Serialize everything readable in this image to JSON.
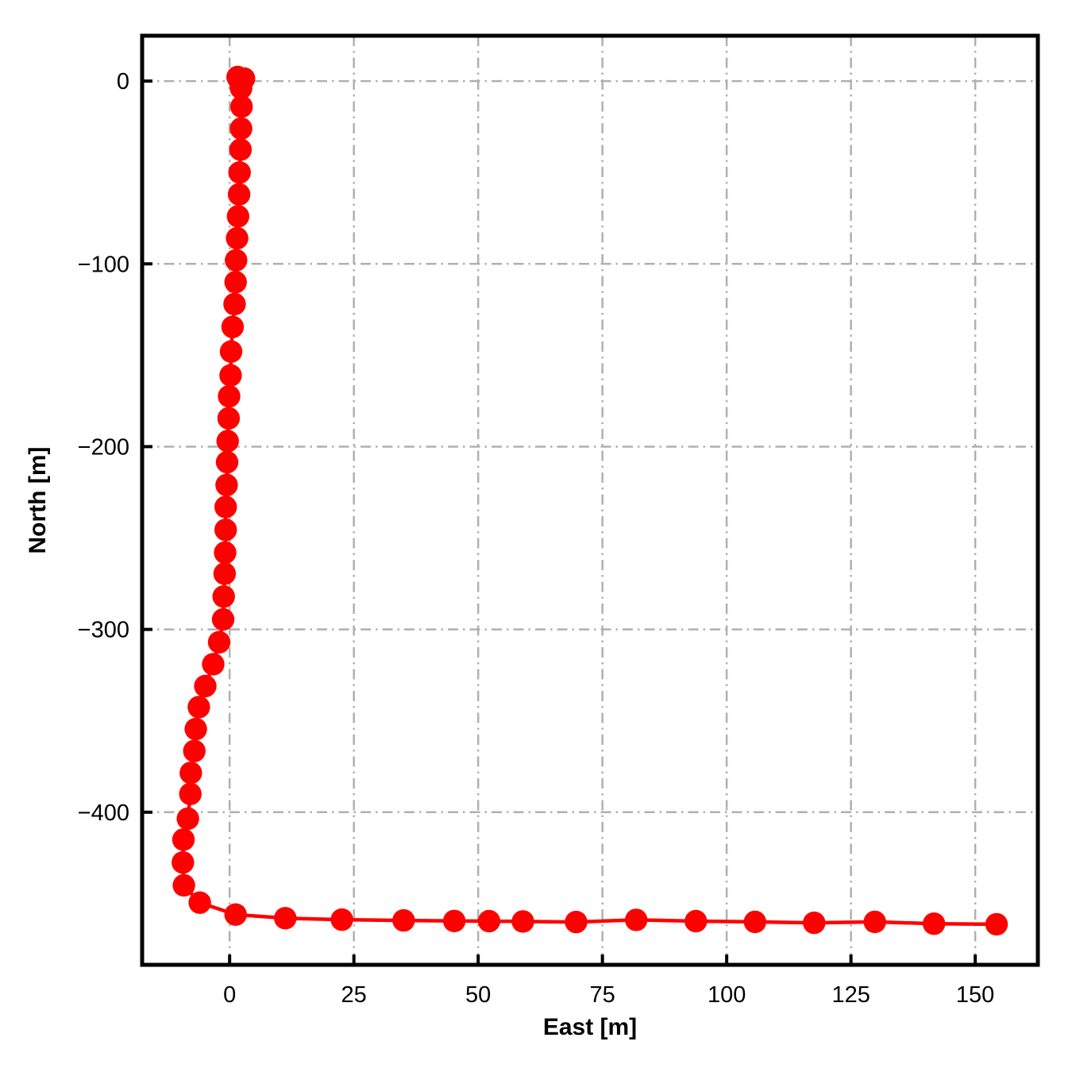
{
  "figure": {
    "background": "#ffffff",
    "frame_color": "#000000"
  },
  "chart_data": {
    "type": "line",
    "title": "",
    "xlabel": "East [m]",
    "ylabel": "North [m]",
    "xlim": [
      -17.6,
      162.6
    ],
    "ylim": [
      -483.5,
      24.8
    ],
    "xticks": {
      "values": [
        0,
        25,
        50,
        75,
        100,
        125,
        150
      ],
      "labels": [
        "0",
        "25",
        "50",
        "75",
        "100",
        "125",
        "150"
      ]
    },
    "yticks": {
      "values": [
        0,
        -100,
        -200,
        -300,
        -400
      ],
      "labels": [
        "0",
        "−100",
        "−200",
        "−300",
        "−400"
      ]
    },
    "grid": {
      "visible": true,
      "style": "dashdot",
      "color": "#b0b0b0"
    },
    "legend_position": "none",
    "series": [
      {
        "name": "trajectory",
        "color": "#ff0000",
        "marker": "circle",
        "line_style": "solid",
        "points": [
          [
            1.6,
            2.2
          ],
          [
            2.9,
            1.4
          ],
          [
            2.3,
            -3.9
          ],
          [
            2.4,
            -14.0
          ],
          [
            2.3,
            -26.0
          ],
          [
            2.2,
            -37.5
          ],
          [
            2.0,
            -50.0
          ],
          [
            1.9,
            -62.0
          ],
          [
            1.7,
            -74.0
          ],
          [
            1.5,
            -86.0
          ],
          [
            1.3,
            -98.0
          ],
          [
            1.2,
            -110.0
          ],
          [
            1.0,
            -122.0
          ],
          [
            0.6,
            -134.5
          ],
          [
            0.3,
            -148.0
          ],
          [
            0.2,
            -161.0
          ],
          [
            -0.1,
            -172.5
          ],
          [
            -0.2,
            -184.5
          ],
          [
            -0.4,
            -197.0
          ],
          [
            -0.5,
            -208.5
          ],
          [
            -0.6,
            -221.0
          ],
          [
            -0.8,
            -233.0
          ],
          [
            -0.8,
            -245.5
          ],
          [
            -0.9,
            -258.0
          ],
          [
            -1.0,
            -269.5
          ],
          [
            -1.2,
            -282.0
          ],
          [
            -1.3,
            -294.5
          ],
          [
            -2.1,
            -307.0
          ],
          [
            -3.3,
            -319.0
          ],
          [
            -4.9,
            -331.0
          ],
          [
            -6.2,
            -342.5
          ],
          [
            -6.8,
            -354.5
          ],
          [
            -7.1,
            -366.5
          ],
          [
            -7.8,
            -378.5
          ],
          [
            -7.9,
            -390.0
          ],
          [
            -8.4,
            -403.5
          ],
          [
            -9.3,
            -415.0
          ],
          [
            -9.4,
            -427.5
          ],
          [
            -9.2,
            -440.0
          ],
          [
            -6.0,
            -449.5
          ],
          [
            1.2,
            -456.0
          ],
          [
            11.2,
            -458.0
          ],
          [
            22.6,
            -458.8
          ],
          [
            35.0,
            -459.2
          ],
          [
            45.2,
            -459.5
          ],
          [
            52.2,
            -459.6
          ],
          [
            59.0,
            -459.8
          ],
          [
            69.7,
            -460.1
          ],
          [
            81.8,
            -458.9
          ],
          [
            93.8,
            -459.6
          ],
          [
            105.7,
            -460.0
          ],
          [
            117.6,
            -460.5
          ],
          [
            129.8,
            -460.0
          ],
          [
            141.7,
            -461.0
          ],
          [
            154.3,
            -461.3
          ]
        ]
      }
    ]
  }
}
